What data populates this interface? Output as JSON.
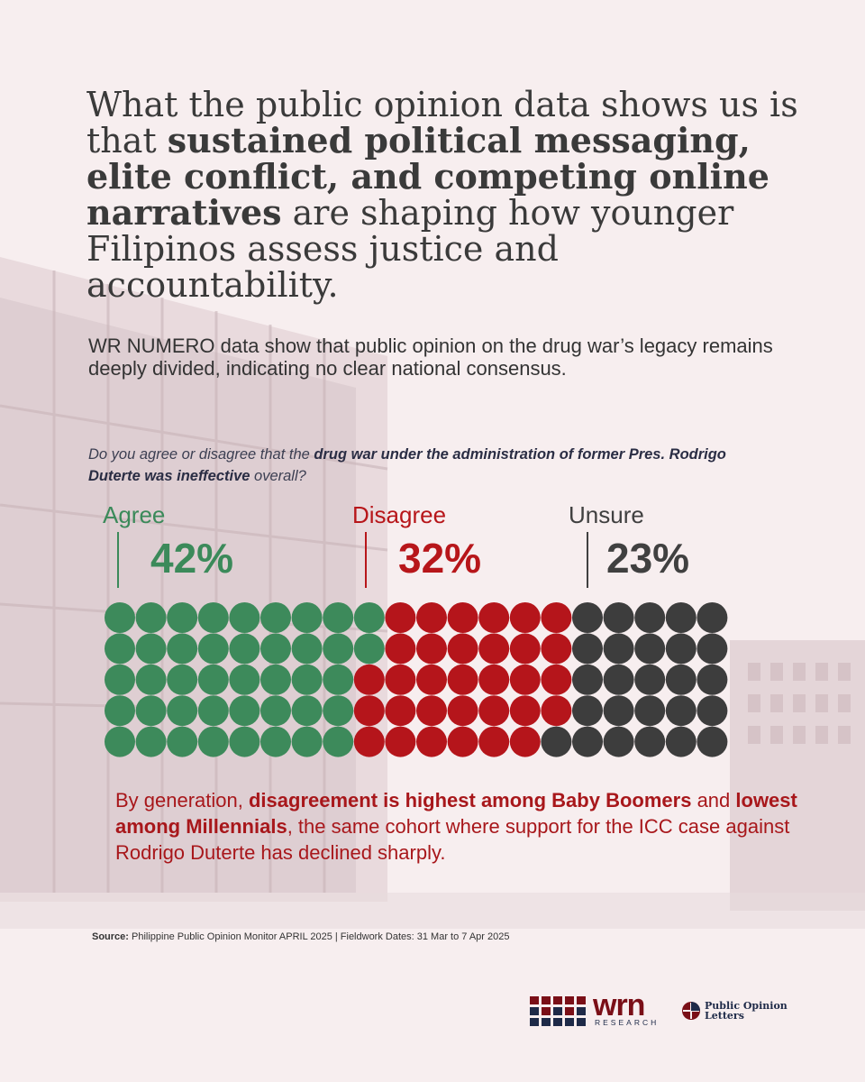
{
  "headline": {
    "part1": "What the public opinion data shows us is that ",
    "bold": "sustained political messaging, elite conflict, and competing online narratives",
    "part2": " are shaping how younger Filipinos assess justice and accountability."
  },
  "intro": "WR NUMERO data show that public opinion on the drug war’s legacy remains deeply divided, indicating no clear national consensus.",
  "question": {
    "part1": "Do you agree or disagree that the ",
    "bold": "drug war under the administration of former Pres. Rodrigo Duterte was ineffective",
    "part2": " overall?"
  },
  "chart_data": {
    "type": "waffle",
    "grid": {
      "columns": 20,
      "rows": 5,
      "total_dots": 100
    },
    "categories": [
      {
        "name": "Agree",
        "value": 42,
        "display": "42%",
        "color": "#3d8a5b"
      },
      {
        "name": "Disagree",
        "value": 32,
        "display": "32%",
        "color": "#b5151b"
      },
      {
        "name": "Unsure",
        "value": 23,
        "display": "23%",
        "color": "#3d3d3d"
      }
    ],
    "fill_order": "column-major, top-to-bottom"
  },
  "generation": {
    "part1": "By generation, ",
    "bold1": "disagreement is highest among Baby Boomers",
    "part2": " and ",
    "bold2": "lowest among Millennials",
    "part3": ", the same cohort where support for the ICC case against Rodrigo Duterte has declined sharply."
  },
  "source": {
    "label": "Source:",
    "text": " Philippine Public Opinion Monitor APRIL 2025 | Fieldwork Dates: 31 Mar to 7 Apr 2025"
  },
  "logos": {
    "wrn": "wrn",
    "wrn_sub": "RESEARCH",
    "pol_line1": "Public Opinion",
    "pol_line2": "Letters"
  },
  "colors": {
    "background": "#f7eeef",
    "agree": "#3d8a5b",
    "disagree": "#b5151b",
    "unsure": "#3d3d3d",
    "navy": "#1e2a48",
    "maroon": "#7a0f17"
  }
}
